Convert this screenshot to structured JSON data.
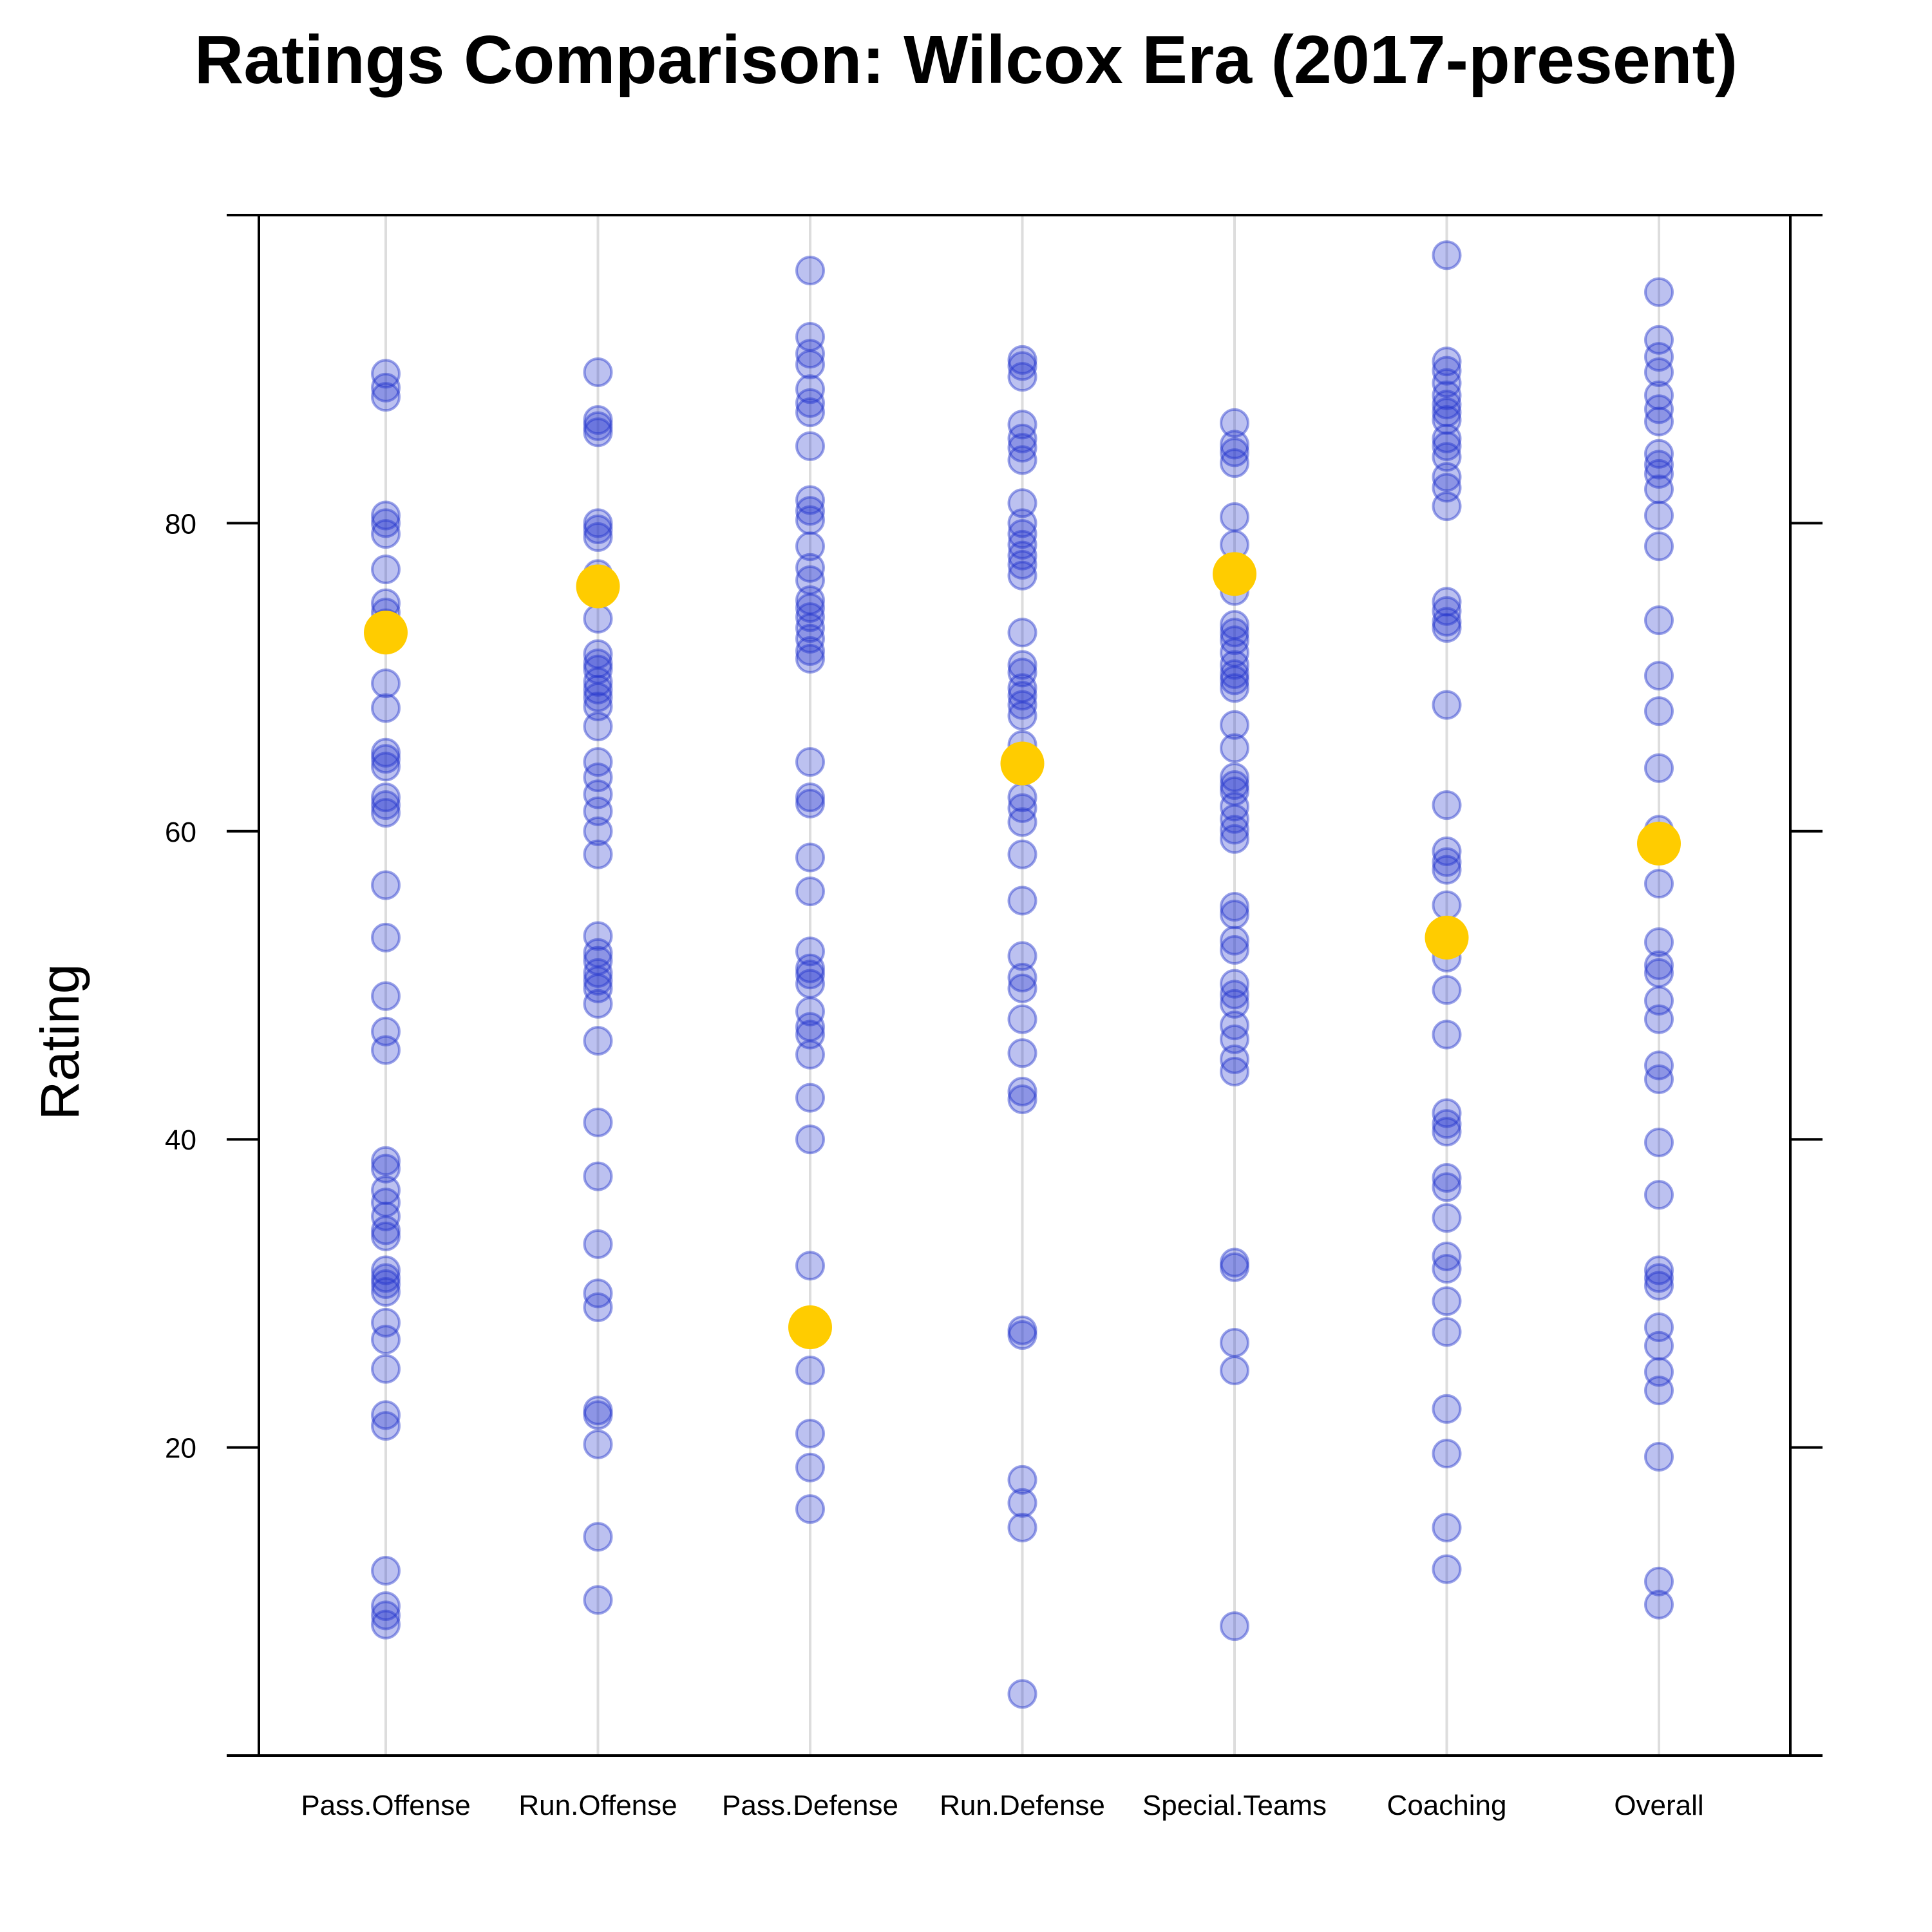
{
  "chart_data": {
    "type": "scatter",
    "title": "Ratings Comparison: Wilcox Era (2017-present)",
    "ylabel": "Rating",
    "xlabel": "",
    "ylim": [
      0,
      100
    ],
    "yticks": [
      20,
      40,
      60,
      80
    ],
    "categories": [
      "Pass.Offense",
      "Run.Offense",
      "Pass.Defense",
      "Run.Defense",
      "Special.Teams",
      "Coaching",
      "Overall"
    ],
    "grid": "vertical lines at categories",
    "colors": {
      "points": "#2233cc",
      "highlight": "#ffcc00",
      "gridline": "#dddddd"
    },
    "series": [
      {
        "values": [
          [
            89.7,
            88.8,
            88.2,
            80.5,
            80.0,
            79.3,
            77.0,
            74.8,
            74.2,
            73.5,
            72.5,
            69.6,
            68.0,
            65.1,
            64.7,
            64.2,
            62.2,
            61.7,
            61.2,
            56.5,
            53.1,
            49.3,
            47.0,
            45.8,
            38.6,
            38.1,
            36.7,
            35.9,
            35.0,
            34.1,
            33.7,
            31.5,
            31.0,
            30.6,
            30.1,
            28.1,
            27.0,
            25.1,
            22.1,
            21.4,
            12.0,
            9.7,
            9.1,
            8.5
          ],
          [
            89.8,
            86.7,
            86.3,
            85.9,
            80.0,
            79.6,
            79.1,
            76.7,
            73.8,
            71.5,
            70.9,
            70.5,
            69.7,
            69.2,
            68.7,
            68.1,
            66.8,
            64.5,
            63.5,
            62.4,
            61.3,
            60.0,
            58.5,
            53.2,
            52.1,
            51.6,
            50.8,
            50.3,
            49.8,
            48.8,
            46.4,
            41.1,
            37.6,
            33.2,
            30.0,
            29.1,
            22.4,
            22.1,
            20.2,
            14.2,
            10.1
          ],
          [
            96.4,
            92.1,
            91.0,
            90.3,
            88.7,
            87.8,
            87.2,
            85.0,
            81.5,
            80.8,
            80.2,
            78.5,
            77.1,
            76.3,
            75.0,
            74.5,
            73.9,
            73.2,
            72.5,
            71.7,
            71.2,
            64.5,
            62.2,
            61.8,
            58.3,
            56.1,
            52.2,
            51.1,
            50.7,
            50.1,
            48.3,
            47.3,
            46.8,
            45.5,
            42.7,
            40.0,
            31.8,
            25.0,
            20.9,
            18.7,
            16.0
          ],
          [
            90.6,
            90.2,
            89.5,
            86.4,
            85.5,
            84.9,
            84.1,
            81.3,
            80.0,
            79.3,
            78.6,
            77.9,
            77.3,
            76.6,
            72.9,
            70.8,
            70.3,
            69.3,
            68.8,
            68.2,
            67.5,
            65.6,
            64.2,
            62.2,
            61.5,
            60.6,
            58.5,
            55.5,
            51.9,
            50.5,
            49.8,
            47.8,
            45.6,
            43.1,
            42.6,
            27.6,
            27.3,
            17.9,
            16.4,
            14.8,
            4.0
          ],
          [
            86.5,
            85.1,
            84.6,
            83.9,
            80.4,
            78.6,
            76.9,
            75.6,
            73.4,
            72.9,
            72.4,
            71.6,
            70.8,
            70.2,
            69.8,
            69.3,
            66.9,
            65.4,
            63.5,
            63.0,
            62.6,
            61.6,
            60.8,
            60.1,
            59.5,
            55.1,
            54.6,
            52.9,
            52.3,
            50.1,
            49.4,
            48.8,
            47.4,
            46.5,
            45.2,
            44.4,
            32.0,
            31.7,
            26.8,
            25.0,
            8.4
          ],
          [
            97.4,
            90.5,
            89.9,
            89.1,
            88.3,
            87.7,
            87.2,
            86.7,
            85.5,
            85.0,
            84.3,
            83.0,
            82.3,
            81.1,
            74.9,
            74.3,
            73.6,
            73.2,
            68.2,
            61.7,
            58.7,
            58.0,
            57.5,
            55.2,
            51.8,
            49.7,
            46.8,
            41.7,
            41.0,
            40.5,
            37.5,
            36.9,
            34.9,
            32.4,
            31.6,
            29.5,
            27.5,
            22.5,
            19.6,
            14.8,
            12.1
          ],
          [
            95.0,
            91.9,
            90.8,
            89.8,
            88.3,
            87.4,
            86.6,
            84.5,
            83.8,
            83.2,
            82.2,
            80.5,
            78.5,
            73.7,
            70.1,
            67.8,
            64.1,
            60.1,
            56.6,
            52.8,
            51.3,
            50.8,
            49.0,
            47.8,
            44.8,
            43.9,
            39.8,
            36.4,
            31.5,
            31.0,
            30.5,
            27.8,
            26.6,
            24.9,
            23.7,
            19.4,
            11.3,
            9.8
          ]
        ]
      },
      {
        "values": [
          72.9,
          75.9,
          27.8,
          64.4,
          76.7,
          53.1,
          59.2
        ]
      }
    ]
  }
}
